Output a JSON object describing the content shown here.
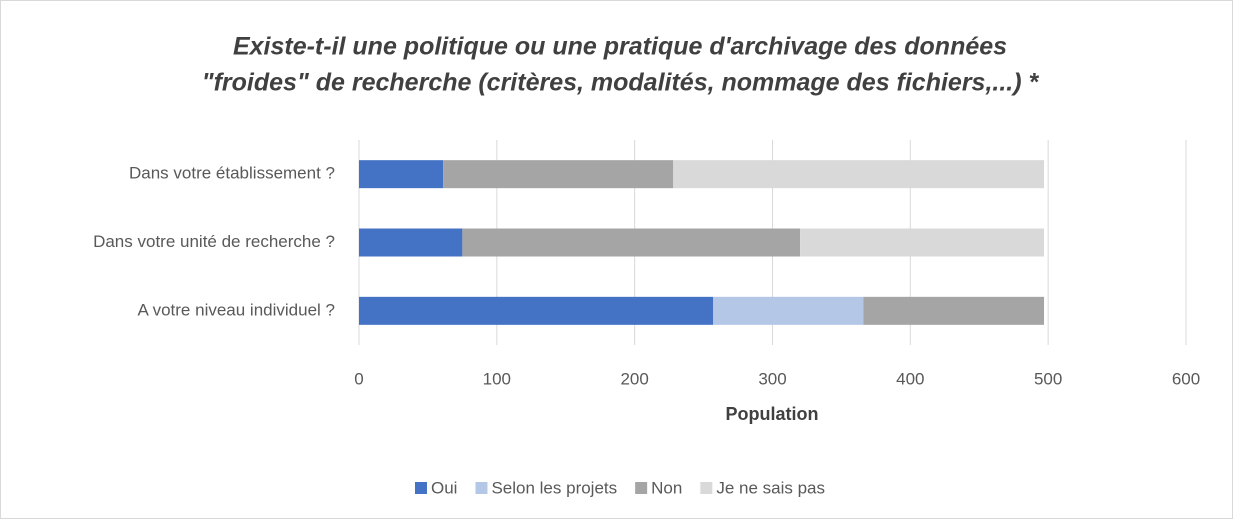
{
  "chart_data": {
    "type": "stacked-bar-horizontal",
    "title": [
      "Existe-t-il une politique ou une pratique d'archivage des données",
      "\"froides\" de recherche (critères, modalités, nommage des fichiers,...) *"
    ],
    "categories": [
      "Dans votre établissement ?",
      "Dans votre unité de recherche ?",
      "A votre niveau individuel ?"
    ],
    "series": [
      {
        "name": "Oui",
        "color": "#4472c4",
        "values": [
          61,
          75,
          257
        ]
      },
      {
        "name": "Selon les projets",
        "color": "#b4c7e7",
        "values": [
          0,
          0,
          109
        ]
      },
      {
        "name": "Non",
        "color": "#a5a5a5",
        "values": [
          167,
          245,
          131
        ]
      },
      {
        "name": "Je ne sais pas",
        "color": "#d9d9d9",
        "values": [
          269,
          177,
          0
        ]
      }
    ],
    "x_label": "Population",
    "xlim": [
      0,
      600
    ],
    "xticks": [
      0,
      100,
      200,
      300,
      400,
      500,
      600
    ],
    "grid": true,
    "legend": "bottom"
  }
}
